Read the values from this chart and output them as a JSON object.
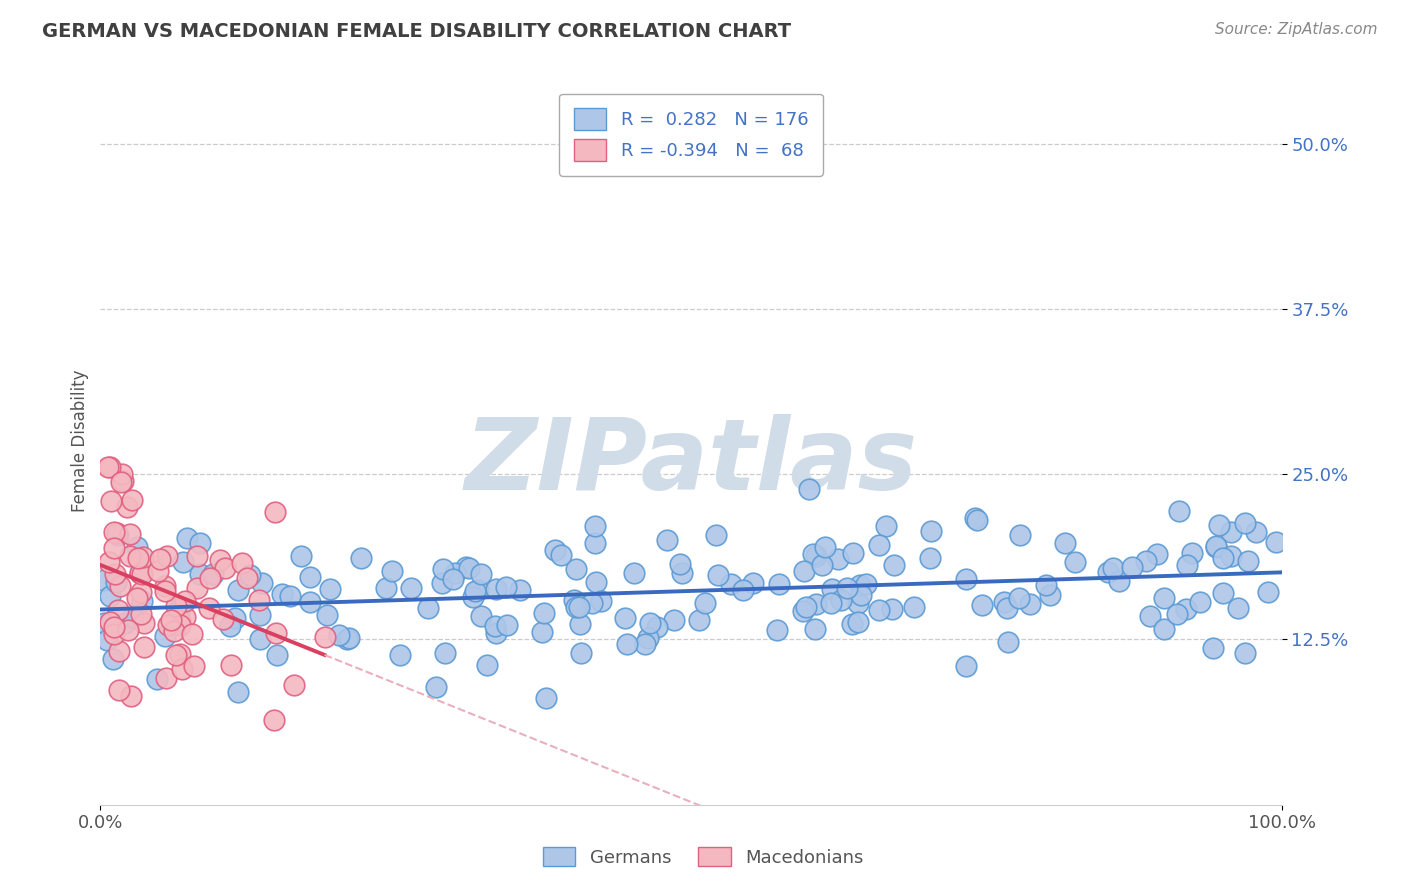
{
  "title": "GERMAN VS MACEDONIAN FEMALE DISABILITY CORRELATION CHART",
  "source": "Source: ZipAtlas.com",
  "ylabel": "Female Disability",
  "ytick_labels": [
    "12.5%",
    "25.0%",
    "37.5%",
    "50.0%"
  ],
  "ytick_values": [
    0.125,
    0.25,
    0.375,
    0.5
  ],
  "xlim": [
    0.0,
    1.0
  ],
  "ylim": [
    0.0,
    0.55
  ],
  "legend_label_german": "R =  0.282   N = 176",
  "legend_label_mac": "R = -0.394   N =  68",
  "german_line_color": "#3a6abf",
  "macedonian_line_color": "#d94060",
  "macedonian_line_dashed_color": "#e8b0bc",
  "german_dot_face": "#aec6e8",
  "german_dot_edge": "#5b9bd5",
  "macedonian_dot_face": "#f4b8c1",
  "macedonian_dot_edge": "#e06080",
  "grid_color": "#cccccc",
  "background_color": "#ffffff",
  "watermark_color": "#d0dce8",
  "ytick_color": "#4472c4",
  "title_color": "#404040",
  "source_color": "#888888",
  "legend_text_color": "#4472c4"
}
